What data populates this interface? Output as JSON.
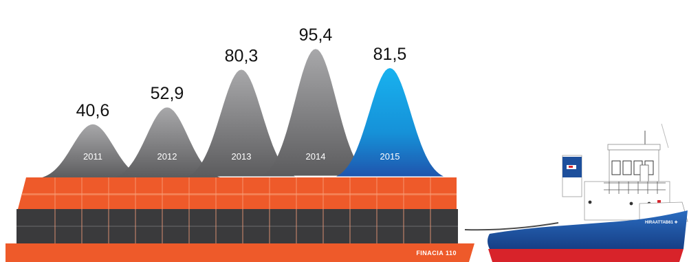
{
  "chart_data": {
    "type": "area",
    "title": "",
    "xlabel": "",
    "ylabel": "",
    "categories": [
      "2011",
      "2012",
      "2013",
      "2014",
      "2015"
    ],
    "value_labels": [
      "40,6",
      "52,9",
      "80,3",
      "95,4",
      "81,5"
    ],
    "values": [
      40.6,
      52.9,
      80.3,
      95.4,
      81.5
    ],
    "grid": false,
    "legend": "none",
    "colors": {
      "past_years": "#8a8a8c",
      "highlight_year": "#1e9be0",
      "barge_orange": "#ee5a2a",
      "barge_dark": "#3a3a3c",
      "ship_blue": "#1d4f9c",
      "ship_red": "#d8232a"
    }
  },
  "barge": {
    "name": "FINACIA 110"
  },
  "ship": {
    "name": "HIRAATTAB61 ✚"
  }
}
